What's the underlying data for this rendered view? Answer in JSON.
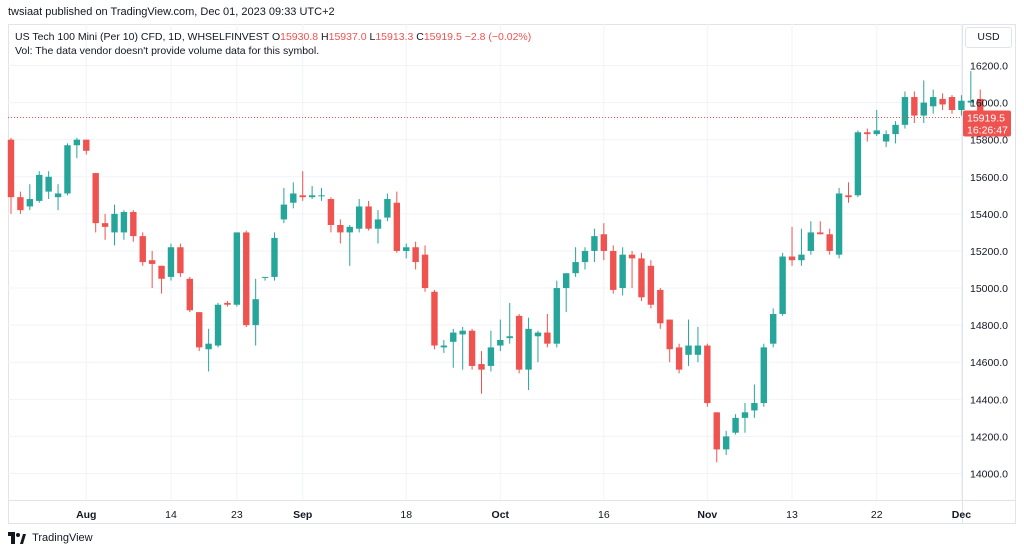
{
  "header": {
    "published_text": "twsiaat published on TradingView.com, Dec 01, 2023 09:33 UTC+2"
  },
  "legend": {
    "symbol": "US Tech 100 Mini (Per 10) CFD, 1D, WHSELFINVEST",
    "open_label": "O",
    "open_value": "15930.8",
    "high_label": "H",
    "high_value": "15937.0",
    "low_label": "L",
    "low_value": "15913.3",
    "close_label": "C",
    "close_value": "15919.5",
    "change_value": "−2.8 (−0.02%)",
    "volume_note": "Vol: The data vendor doesn't provide volume data for this symbol."
  },
  "currency_button": "USD",
  "last_price": {
    "price": "15919.5",
    "countdown": "16:26:47"
  },
  "footer": {
    "brand": "TradingView"
  },
  "colors": {
    "up": "#26a69a",
    "down": "#ef5350",
    "grid": "#f0f3fa",
    "axis_text": "#131722",
    "price_line": "#ef5350"
  },
  "chart_data": {
    "type": "candlestick",
    "y_ticks": [
      "14000.0",
      "14200.0",
      "14400.0",
      "14600.0",
      "14800.0",
      "15000.0",
      "15200.0",
      "15400.0",
      "15600.0",
      "15800.0",
      "16000.0",
      "16200.0"
    ],
    "x_ticks": [
      "Aug",
      "14",
      "23",
      "Sep",
      "18",
      "Oct",
      "16",
      "Nov",
      "13",
      "22",
      "Dec"
    ],
    "ylim": [
      13850,
      16280
    ],
    "current_price": 15919.5,
    "candles": [
      {
        "o": 15800,
        "h": 15810,
        "l": 15400,
        "c": 15490
      },
      {
        "o": 15490,
        "h": 15520,
        "l": 15400,
        "c": 15420
      },
      {
        "o": 15440,
        "h": 15560,
        "l": 15420,
        "c": 15480
      },
      {
        "o": 15470,
        "h": 15630,
        "l": 15460,
        "c": 15610
      },
      {
        "o": 15520,
        "h": 15630,
        "l": 15480,
        "c": 15600
      },
      {
        "o": 15490,
        "h": 15560,
        "l": 15420,
        "c": 15510
      },
      {
        "o": 15510,
        "h": 15780,
        "l": 15500,
        "c": 15770
      },
      {
        "o": 15770,
        "h": 15810,
        "l": 15700,
        "c": 15800
      },
      {
        "o": 15800,
        "h": 15800,
        "l": 15720,
        "c": 15740
      },
      {
        "o": 15620,
        "h": 15620,
        "l": 15300,
        "c": 15350
      },
      {
        "o": 15350,
        "h": 15400,
        "l": 15260,
        "c": 15330
      },
      {
        "o": 15300,
        "h": 15450,
        "l": 15230,
        "c": 15400
      },
      {
        "o": 15300,
        "h": 15420,
        "l": 15260,
        "c": 15410
      },
      {
        "o": 15410,
        "h": 15420,
        "l": 15250,
        "c": 15280
      },
      {
        "o": 15280,
        "h": 15300,
        "l": 15120,
        "c": 15140
      },
      {
        "o": 15150,
        "h": 15200,
        "l": 15000,
        "c": 15130
      },
      {
        "o": 15120,
        "h": 15120,
        "l": 14970,
        "c": 15050
      },
      {
        "o": 15060,
        "h": 15240,
        "l": 15040,
        "c": 15220
      },
      {
        "o": 15220,
        "h": 15240,
        "l": 15060,
        "c": 15080
      },
      {
        "o": 15050,
        "h": 15060,
        "l": 14870,
        "c": 14880
      },
      {
        "o": 14870,
        "h": 14870,
        "l": 14660,
        "c": 14680
      },
      {
        "o": 14670,
        "h": 14780,
        "l": 14550,
        "c": 14700
      },
      {
        "o": 14690,
        "h": 14920,
        "l": 14680,
        "c": 14910
      },
      {
        "o": 14920,
        "h": 14930,
        "l": 14900,
        "c": 14910
      },
      {
        "o": 14910,
        "h": 15300,
        "l": 14900,
        "c": 15300
      },
      {
        "o": 15300,
        "h": 15310,
        "l": 14790,
        "c": 14800
      },
      {
        "o": 14800,
        "h": 15050,
        "l": 14690,
        "c": 14940
      },
      {
        "o": 15060,
        "h": 15060,
        "l": 15040,
        "c": 15060
      },
      {
        "o": 15060,
        "h": 15300,
        "l": 15040,
        "c": 15270
      },
      {
        "o": 15370,
        "h": 15540,
        "l": 15350,
        "c": 15450
      },
      {
        "o": 15460,
        "h": 15570,
        "l": 15430,
        "c": 15510
      },
      {
        "o": 15500,
        "h": 15630,
        "l": 15470,
        "c": 15490
      },
      {
        "o": 15490,
        "h": 15550,
        "l": 15480,
        "c": 15500
      },
      {
        "o": 15500,
        "h": 15540,
        "l": 15470,
        "c": 15500
      },
      {
        "o": 15480,
        "h": 15490,
        "l": 15300,
        "c": 15340
      },
      {
        "o": 15340,
        "h": 15370,
        "l": 15240,
        "c": 15300
      },
      {
        "o": 15300,
        "h": 15340,
        "l": 15120,
        "c": 15330
      },
      {
        "o": 15320,
        "h": 15480,
        "l": 15300,
        "c": 15440
      },
      {
        "o": 15440,
        "h": 15470,
        "l": 15310,
        "c": 15320
      },
      {
        "o": 15320,
        "h": 15420,
        "l": 15240,
        "c": 15370
      },
      {
        "o": 15380,
        "h": 15510,
        "l": 15360,
        "c": 15480
      },
      {
        "o": 15460,
        "h": 15520,
        "l": 15190,
        "c": 15200
      },
      {
        "o": 15200,
        "h": 15240,
        "l": 15160,
        "c": 15220
      },
      {
        "o": 15220,
        "h": 15250,
        "l": 15100,
        "c": 15140
      },
      {
        "o": 15180,
        "h": 15230,
        "l": 14980,
        "c": 15000
      },
      {
        "o": 14980,
        "h": 14990,
        "l": 14670,
        "c": 14690
      },
      {
        "o": 14680,
        "h": 14720,
        "l": 14650,
        "c": 14690
      },
      {
        "o": 14710,
        "h": 14780,
        "l": 14570,
        "c": 14760
      },
      {
        "o": 14750,
        "h": 14790,
        "l": 14560,
        "c": 14770
      },
      {
        "o": 14770,
        "h": 14780,
        "l": 14560,
        "c": 14580
      },
      {
        "o": 14590,
        "h": 14660,
        "l": 14430,
        "c": 14560
      },
      {
        "o": 14580,
        "h": 14770,
        "l": 14550,
        "c": 14680
      },
      {
        "o": 14690,
        "h": 14830,
        "l": 14660,
        "c": 14720
      },
      {
        "o": 14730,
        "h": 14920,
        "l": 14700,
        "c": 14740
      },
      {
        "o": 14850,
        "h": 14860,
        "l": 14540,
        "c": 14560
      },
      {
        "o": 14560,
        "h": 14840,
        "l": 14450,
        "c": 14780
      },
      {
        "o": 14740,
        "h": 14770,
        "l": 14600,
        "c": 14760
      },
      {
        "o": 14760,
        "h": 14860,
        "l": 14680,
        "c": 14700
      },
      {
        "o": 14700,
        "h": 15040,
        "l": 14680,
        "c": 15000
      },
      {
        "o": 15000,
        "h": 15080,
        "l": 14870,
        "c": 15080
      },
      {
        "o": 15080,
        "h": 15220,
        "l": 15060,
        "c": 15140
      },
      {
        "o": 15140,
        "h": 15220,
        "l": 15100,
        "c": 15200
      },
      {
        "o": 15200,
        "h": 15320,
        "l": 15140,
        "c": 15280
      },
      {
        "o": 15290,
        "h": 15350,
        "l": 15150,
        "c": 15200
      },
      {
        "o": 15200,
        "h": 15230,
        "l": 14970,
        "c": 14990
      },
      {
        "o": 15000,
        "h": 15220,
        "l": 14960,
        "c": 15180
      },
      {
        "o": 15180,
        "h": 15200,
        "l": 15000,
        "c": 15160
      },
      {
        "o": 15160,
        "h": 15190,
        "l": 14930,
        "c": 14950
      },
      {
        "o": 15120,
        "h": 15150,
        "l": 14890,
        "c": 14910
      },
      {
        "o": 14990,
        "h": 15000,
        "l": 14780,
        "c": 14810
      },
      {
        "o": 14830,
        "h": 14830,
        "l": 14600,
        "c": 14670
      },
      {
        "o": 14680,
        "h": 14700,
        "l": 14540,
        "c": 14560
      },
      {
        "o": 14640,
        "h": 14830,
        "l": 14580,
        "c": 14690
      },
      {
        "o": 14640,
        "h": 14790,
        "l": 14600,
        "c": 14690
      },
      {
        "o": 14690,
        "h": 14700,
        "l": 14360,
        "c": 14380
      },
      {
        "o": 14330,
        "h": 14330,
        "l": 14060,
        "c": 14130
      },
      {
        "o": 14130,
        "h": 14230,
        "l": 14100,
        "c": 14200
      },
      {
        "o": 14220,
        "h": 14320,
        "l": 14210,
        "c": 14300
      },
      {
        "o": 14300,
        "h": 14380,
        "l": 14220,
        "c": 14330
      },
      {
        "o": 14340,
        "h": 14480,
        "l": 14300,
        "c": 14380
      },
      {
        "o": 14380,
        "h": 14700,
        "l": 14360,
        "c": 14680
      },
      {
        "o": 14700,
        "h": 14890,
        "l": 14680,
        "c": 14860
      },
      {
        "o": 14860,
        "h": 15190,
        "l": 14850,
        "c": 15170
      },
      {
        "o": 15170,
        "h": 15330,
        "l": 15120,
        "c": 15150
      },
      {
        "o": 15150,
        "h": 15320,
        "l": 15120,
        "c": 15180
      },
      {
        "o": 15200,
        "h": 15360,
        "l": 15180,
        "c": 15300
      },
      {
        "o": 15300,
        "h": 15360,
        "l": 15290,
        "c": 15290
      },
      {
        "o": 15290,
        "h": 15320,
        "l": 15180,
        "c": 15200
      },
      {
        "o": 15180,
        "h": 15540,
        "l": 15160,
        "c": 15510
      },
      {
        "o": 15500,
        "h": 15570,
        "l": 15460,
        "c": 15490
      },
      {
        "o": 15500,
        "h": 15850,
        "l": 15490,
        "c": 15840
      },
      {
        "o": 15840,
        "h": 15860,
        "l": 15790,
        "c": 15830
      },
      {
        "o": 15830,
        "h": 15960,
        "l": 15820,
        "c": 15850
      },
      {
        "o": 15790,
        "h": 15850,
        "l": 15760,
        "c": 15830
      },
      {
        "o": 15830,
        "h": 15900,
        "l": 15780,
        "c": 15880
      },
      {
        "o": 15880,
        "h": 16060,
        "l": 15860,
        "c": 16030
      },
      {
        "o": 16030,
        "h": 16060,
        "l": 15890,
        "c": 15930
      },
      {
        "o": 15930,
        "h": 16120,
        "l": 15890,
        "c": 16000
      },
      {
        "o": 15980,
        "h": 16070,
        "l": 15940,
        "c": 16030
      },
      {
        "o": 16020,
        "h": 16050,
        "l": 15960,
        "c": 15990
      },
      {
        "o": 16030,
        "h": 16040,
        "l": 15940,
        "c": 15960
      },
      {
        "o": 15960,
        "h": 16040,
        "l": 15930,
        "c": 16010
      },
      {
        "o": 16000,
        "h": 16170,
        "l": 15980,
        "c": 16010
      },
      {
        "o": 16020,
        "h": 16070,
        "l": 15830,
        "c": 15930
      },
      {
        "o": 15930,
        "h": 15937,
        "l": 15913,
        "c": 15919.5
      }
    ]
  }
}
